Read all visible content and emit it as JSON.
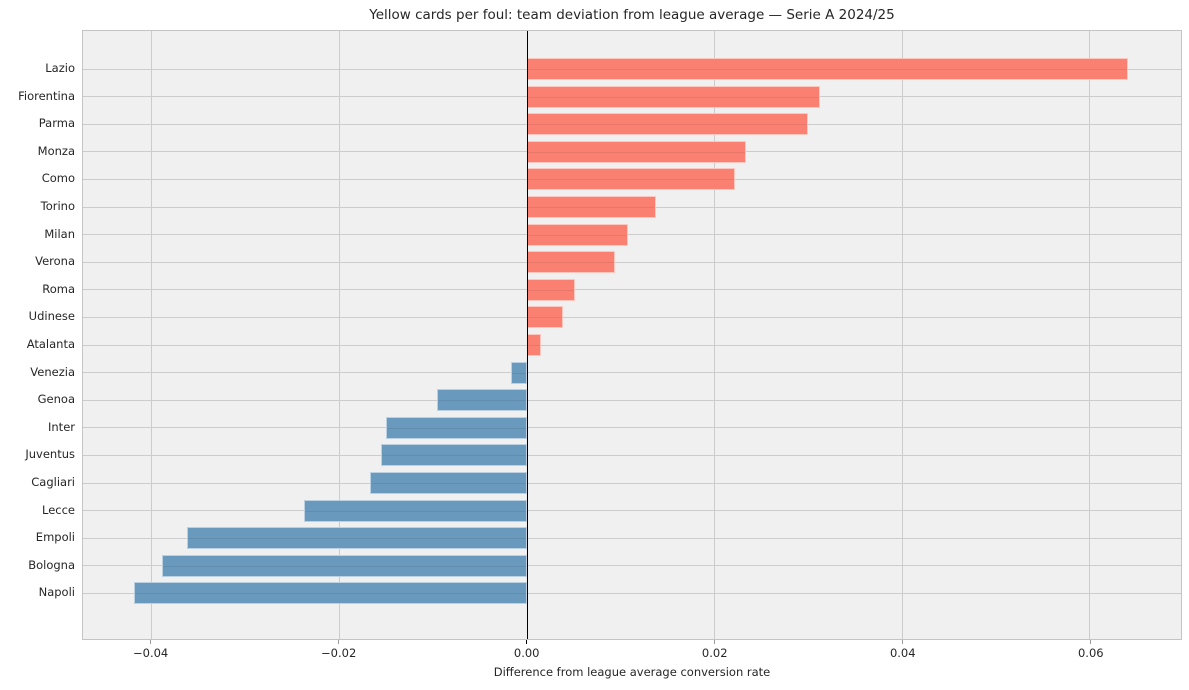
{
  "title": "Yellow cards per foul: team deviation from league average — Serie A 2024/25",
  "colors": {
    "positive_bar": "#fa8172",
    "negative_bar": "#6999bd",
    "plot_background": "#f0f0f0",
    "gridline": "#cccccc",
    "zero_line": "#000000",
    "text": "#262626"
  },
  "chart_data": {
    "type": "bar",
    "orientation": "horizontal",
    "title": "Yellow cards per foul: team deviation from league average — Serie A 2024/25",
    "xlabel": "Difference from league average conversion rate",
    "ylabel": "",
    "categories": [
      "Lazio",
      "Fiorentina",
      "Parma",
      "Monza",
      "Como",
      "Torino",
      "Milan",
      "Verona",
      "Roma",
      "Udinese",
      "Atalanta",
      "Venezia",
      "Genoa",
      "Inter",
      "Juventus",
      "Cagliari",
      "Lecce",
      "Empoli",
      "Bologna",
      "Napoli"
    ],
    "values": [
      0.064,
      0.0312,
      0.03,
      0.0233,
      0.0222,
      0.0138,
      0.0108,
      0.0094,
      0.0051,
      0.0038,
      0.0015,
      -0.0017,
      -0.0096,
      -0.015,
      -0.0155,
      -0.0167,
      -0.0237,
      -0.0362,
      -0.0389,
      -0.0419
    ],
    "xlim": [
      -0.0473,
      0.0697
    ],
    "xticks": [
      -0.04,
      -0.02,
      0.0,
      0.02,
      0.04,
      0.06
    ],
    "xtick_labels": [
      "−0.04",
      "−0.02",
      "0.00",
      "0.02",
      "0.04",
      "0.06"
    ],
    "grid": true,
    "legend": false,
    "zero_line": true
  }
}
